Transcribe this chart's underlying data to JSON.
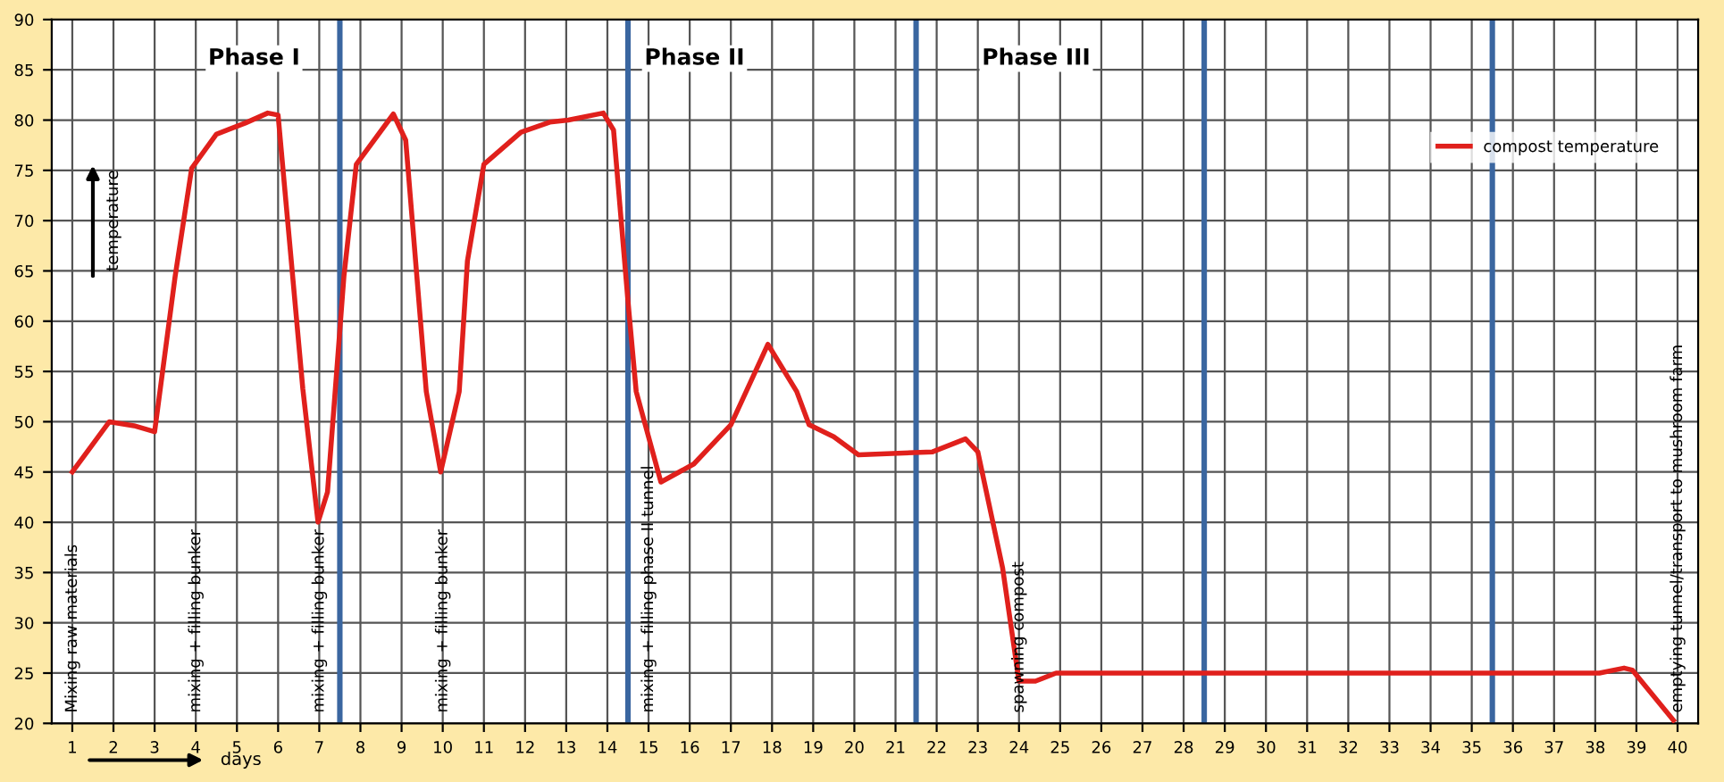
{
  "chart_data": {
    "type": "line",
    "xlabel": "days",
    "ylabel": "temperature",
    "xlim": [
      0.5,
      40.5
    ],
    "xticks": [
      1,
      2,
      3,
      4,
      5,
      6,
      7,
      8,
      9,
      10,
      11,
      12,
      13,
      14,
      15,
      16,
      17,
      18,
      19,
      20,
      21,
      22,
      23,
      24,
      25,
      26,
      27,
      28,
      29,
      30,
      31,
      32,
      33,
      34,
      35,
      36,
      37,
      38,
      39,
      40
    ],
    "ylim": [
      20,
      90
    ],
    "yticks": [
      20,
      25,
      30,
      35,
      40,
      45,
      50,
      55,
      60,
      65,
      70,
      75,
      80,
      85,
      90
    ],
    "grid": true,
    "legend": "top right",
    "marker": "none",
    "line_style": "solid",
    "series": [
      {
        "name": "compost temperature",
        "color": "#e0201c",
        "x": [
          1,
          1.9,
          2.5,
          3,
          3.5,
          3.9,
          4.5,
          5.2,
          5.75,
          6,
          6.6,
          6.97,
          7.2,
          7.6,
          7.9,
          8.8,
          9.1,
          9.6,
          9.95,
          10.4,
          10.6,
          11,
          11.9,
          12.6,
          13.05,
          13.9,
          14.15,
          14.5,
          14.7,
          15.3,
          16.1,
          17,
          17.9,
          18.6,
          18.9,
          19.5,
          20.1,
          21.9,
          22.7,
          23,
          23.6,
          24,
          24.4,
          24.9,
          38.1,
          38.7,
          38.9,
          39.9
        ],
        "values": [
          45,
          50,
          49.6,
          49,
          64.5,
          75.2,
          78.6,
          79.7,
          80.7,
          80.5,
          53.3,
          40,
          43,
          64.5,
          75.6,
          80.6,
          78,
          53,
          45,
          53,
          66,
          75.6,
          78.8,
          79.8,
          80,
          80.7,
          79,
          62,
          53,
          44,
          45.8,
          49.7,
          57.7,
          53,
          49.7,
          48.5,
          46.7,
          47,
          48.3,
          47,
          35.5,
          24.2,
          24.2,
          25,
          25,
          25.5,
          25.3,
          20.3
        ]
      }
    ],
    "ref_lines": [
      {
        "axis": "x",
        "value": 7.5,
        "color": "#3a66a0"
      },
      {
        "axis": "x",
        "value": 14.5,
        "color": "#3a66a0"
      },
      {
        "axis": "x",
        "value": 21.5,
        "color": "#3a66a0"
      },
      {
        "axis": "x",
        "value": 28.5,
        "color": "#3a66a0"
      },
      {
        "axis": "x",
        "value": 35.5,
        "color": "#3a66a0"
      }
    ],
    "annotations": [
      "Phase I",
      "Phase II",
      "Phase III",
      "Mixing raw materials",
      "mixing + filling bunker",
      "mixing + filling bunker",
      "mixing + filling bunker",
      "mixing + filling phase II tunnel",
      "spawning compost",
      "emptying tunnel/transport to mushroom farm"
    ]
  }
}
